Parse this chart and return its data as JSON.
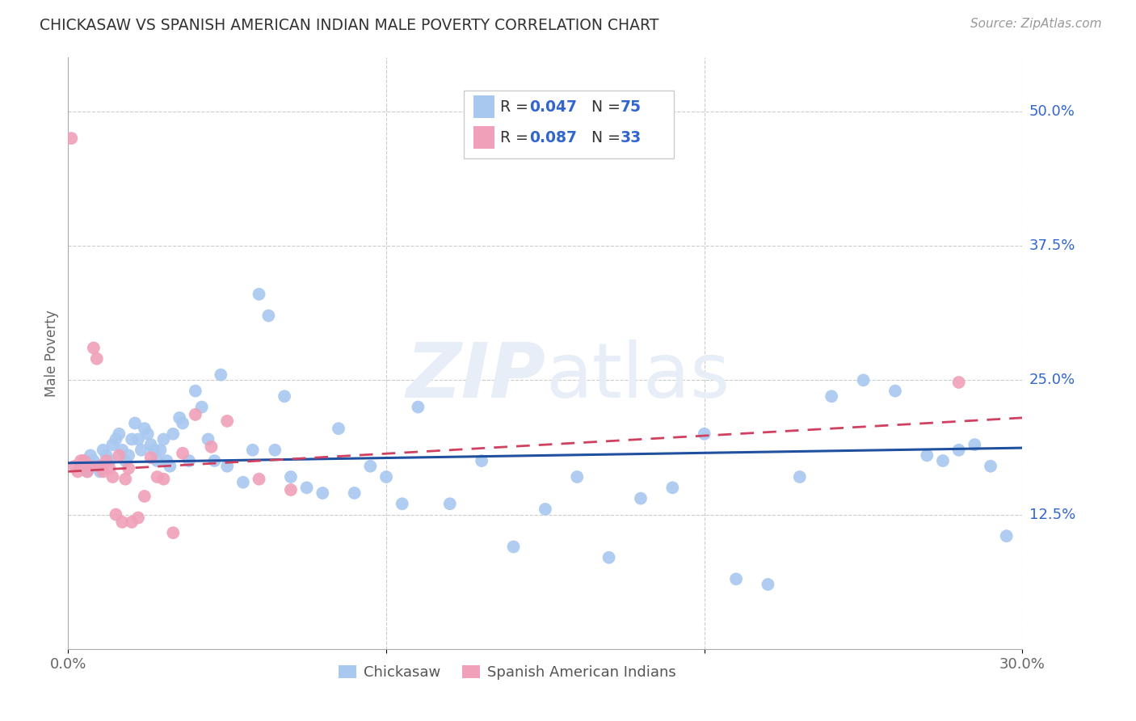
{
  "title": "CHICKASAW VS SPANISH AMERICAN INDIAN MALE POVERTY CORRELATION CHART",
  "source": "Source: ZipAtlas.com",
  "ylabel": "Male Poverty",
  "xlim": [
    0.0,
    0.3
  ],
  "ylim": [
    0.0,
    0.55
  ],
  "ytick_positions": [
    0.125,
    0.25,
    0.375,
    0.5
  ],
  "ytick_labels": [
    "12.5%",
    "25.0%",
    "37.5%",
    "50.0%"
  ],
  "legend_R1": "0.047",
  "legend_N1": "75",
  "legend_R2": "0.087",
  "legend_N2": "33",
  "color_blue": "#a8c8f0",
  "color_pink": "#f0a0b8",
  "color_blue_line": "#2050a0",
  "color_pink_line": "#d04060",
  "color_rn": "#3366cc",
  "watermark_color": "#e8eef8",
  "xlabel_chickasaw": "Chickasaw",
  "xlabel_spanish": "Spanish American Indians",
  "blue_x": [
    0.004,
    0.005,
    0.006,
    0.007,
    0.008,
    0.009,
    0.01,
    0.011,
    0.012,
    0.013,
    0.014,
    0.015,
    0.016,
    0.017,
    0.018,
    0.019,
    0.02,
    0.021,
    0.022,
    0.023,
    0.024,
    0.025,
    0.026,
    0.027,
    0.028,
    0.029,
    0.03,
    0.031,
    0.032,
    0.033,
    0.035,
    0.036,
    0.038,
    0.04,
    0.042,
    0.044,
    0.046,
    0.048,
    0.05,
    0.055,
    0.058,
    0.06,
    0.063,
    0.065,
    0.068,
    0.07,
    0.075,
    0.08,
    0.085,
    0.09,
    0.095,
    0.1,
    0.105,
    0.11,
    0.12,
    0.13,
    0.14,
    0.15,
    0.16,
    0.17,
    0.18,
    0.19,
    0.2,
    0.21,
    0.22,
    0.23,
    0.24,
    0.25,
    0.26,
    0.27,
    0.275,
    0.28,
    0.285,
    0.29,
    0.295
  ],
  "blue_y": [
    0.17,
    0.175,
    0.165,
    0.18,
    0.175,
    0.17,
    0.165,
    0.185,
    0.18,
    0.175,
    0.19,
    0.195,
    0.2,
    0.185,
    0.175,
    0.18,
    0.195,
    0.21,
    0.195,
    0.185,
    0.205,
    0.2,
    0.19,
    0.185,
    0.175,
    0.185,
    0.195,
    0.175,
    0.17,
    0.2,
    0.215,
    0.21,
    0.175,
    0.24,
    0.225,
    0.195,
    0.175,
    0.255,
    0.17,
    0.155,
    0.185,
    0.33,
    0.31,
    0.185,
    0.235,
    0.16,
    0.15,
    0.145,
    0.205,
    0.145,
    0.17,
    0.16,
    0.135,
    0.225,
    0.135,
    0.175,
    0.095,
    0.13,
    0.16,
    0.085,
    0.14,
    0.15,
    0.2,
    0.065,
    0.06,
    0.16,
    0.235,
    0.25,
    0.24,
    0.18,
    0.175,
    0.185,
    0.19,
    0.17,
    0.105
  ],
  "pink_x": [
    0.001,
    0.002,
    0.003,
    0.004,
    0.005,
    0.006,
    0.007,
    0.008,
    0.009,
    0.01,
    0.011,
    0.012,
    0.013,
    0.014,
    0.015,
    0.016,
    0.017,
    0.018,
    0.019,
    0.02,
    0.022,
    0.024,
    0.026,
    0.028,
    0.03,
    0.033,
    0.036,
    0.04,
    0.045,
    0.05,
    0.06,
    0.07,
    0.28
  ],
  "pink_y": [
    0.475,
    0.17,
    0.165,
    0.175,
    0.175,
    0.165,
    0.17,
    0.28,
    0.27,
    0.17,
    0.165,
    0.175,
    0.168,
    0.16,
    0.125,
    0.18,
    0.118,
    0.158,
    0.168,
    0.118,
    0.122,
    0.142,
    0.178,
    0.16,
    0.158,
    0.108,
    0.182,
    0.218,
    0.188,
    0.212,
    0.158,
    0.148,
    0.248
  ]
}
